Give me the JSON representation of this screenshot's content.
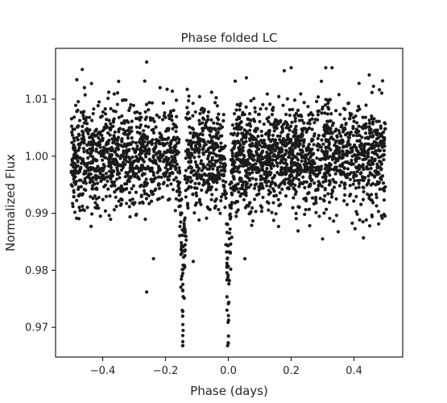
{
  "chart_data": {
    "type": "scatter",
    "title": "Phase folded LC",
    "xlabel": "Phase (days)",
    "ylabel": "Normalized Flux",
    "xlim": [
      -0.55,
      0.555
    ],
    "ylim": [
      0.9648,
      1.0189
    ],
    "xticks": [
      -0.4,
      -0.2,
      0.0,
      0.2,
      0.4
    ],
    "xtick_labels": [
      "−0.4",
      "−0.2",
      "0.0",
      "0.2",
      "0.4"
    ],
    "yticks": [
      0.97,
      0.98,
      0.99,
      1.0,
      1.01
    ],
    "ytick_labels": [
      "0.97",
      "0.98",
      "0.99",
      "1.00",
      "1.01"
    ],
    "grid": false,
    "marker_color": "#1a1a1a",
    "points": {
      "phase_range": [
        -0.5,
        0.5
      ],
      "baseline_flux": 1.0,
      "scatter_sd": 0.0045,
      "count": 3000,
      "dips": [
        {
          "center_phase": -0.145,
          "half_width": 0.013,
          "min_flux": 0.9673
        },
        {
          "center_phase": 0.0,
          "half_width": 0.013,
          "min_flux": 0.9671
        }
      ],
      "notable": [
        {
          "x": -0.26,
          "y": 1.0165
        },
        {
          "x": -0.465,
          "y": 1.0152
        },
        {
          "x": 0.2,
          "y": 1.0155
        },
        {
          "x": 0.31,
          "y": 1.0155
        },
        {
          "x": 0.33,
          "y": 1.0155
        },
        {
          "x": -0.26,
          "y": 0.9762
        },
        {
          "x": -0.145,
          "y": 0.9675
        },
        {
          "x": 0.0,
          "y": 0.9672
        },
        {
          "x": 0.3,
          "y": 0.9855
        },
        {
          "x": 0.45,
          "y": 0.9878
        }
      ]
    }
  }
}
